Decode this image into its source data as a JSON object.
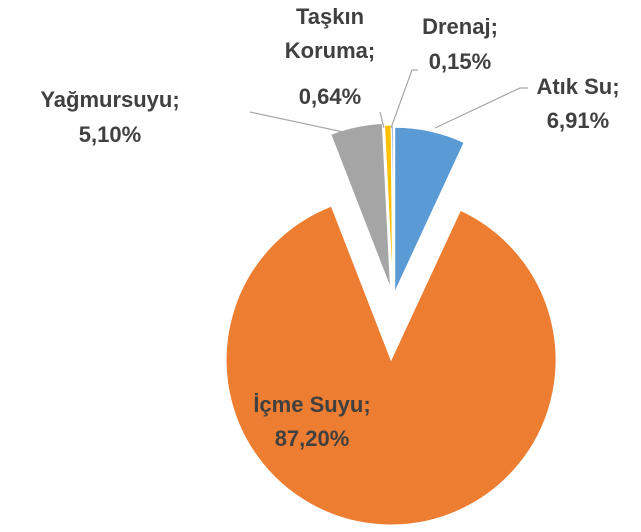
{
  "chart_data": {
    "type": "pie",
    "categories": [
      "Atık Su;",
      "İçme Suyu;",
      "Yağmursuyu;",
      "Taşkın Koruma;",
      "Drenaj;"
    ],
    "values": [
      6.91,
      87.2,
      5.1,
      0.64,
      0.15
    ],
    "value_labels": [
      "6,91%",
      "87,20%",
      "5,10%",
      "0,64%",
      "0,15%"
    ],
    "colors": [
      "#5b9bd5",
      "#ed7d31",
      "#a5a5a5",
      "#ffc000",
      "#4472c4"
    ]
  }
}
